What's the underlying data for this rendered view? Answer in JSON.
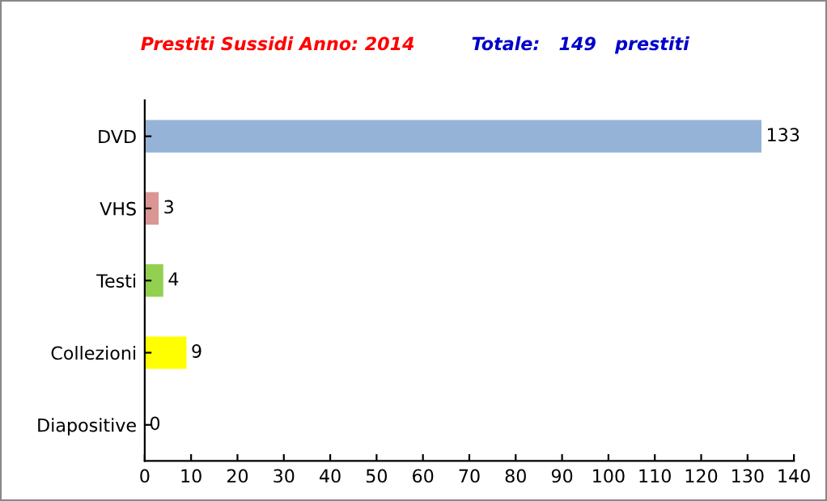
{
  "chart_data": {
    "type": "bar",
    "orientation": "horizontal",
    "title": "Prestiti Sussidi Anno: 2014",
    "subtitle": "Totale:   149   prestiti",
    "categories": [
      "DVD",
      "VHS",
      "Testi",
      "Collezioni",
      "Diapositive"
    ],
    "values": [
      133,
      3,
      4,
      9,
      0
    ],
    "colors": [
      "#95b3d7",
      "#d99694",
      "#92d050",
      "#ffff00",
      "#95b3d7"
    ],
    "xlim": [
      0,
      140
    ],
    "xticks": [
      0,
      10,
      20,
      30,
      40,
      50,
      60,
      70,
      80,
      90,
      100,
      110,
      120,
      130,
      140
    ],
    "data_labels": true,
    "grid": false
  }
}
